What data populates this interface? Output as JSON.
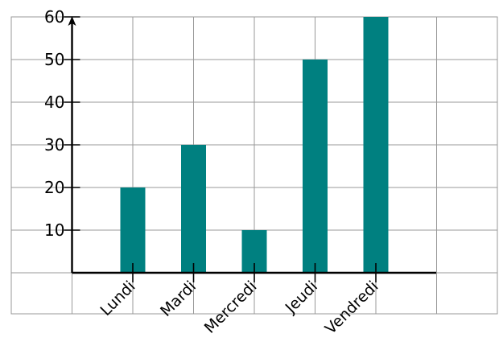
{
  "chart_data": {
    "type": "bar",
    "categories": [
      "Lundi",
      "Mardi",
      "Mercredi",
      "Jeudi",
      "Vendredi"
    ],
    "values": [
      20,
      30,
      10,
      50,
      60
    ],
    "yticks": [
      10,
      20,
      30,
      40,
      50,
      60
    ],
    "ylim": [
      0,
      60
    ],
    "grid": true,
    "colors": {
      "bar": "#008080",
      "grid": "#999999",
      "axis": "#000000"
    }
  }
}
